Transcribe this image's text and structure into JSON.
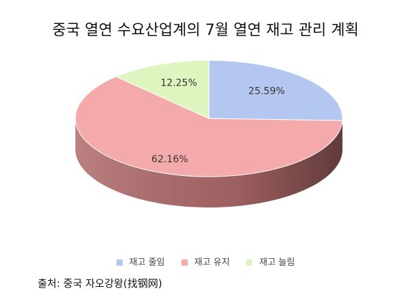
{
  "chart_data": {
    "type": "pie",
    "title": "중국 열연 수요산업계의 7월 열연 재고 관리 계획",
    "categories": [
      "재고 줄임",
      "재고 유지",
      "재고 늘림"
    ],
    "values": [
      25.59,
      62.16,
      12.25
    ],
    "labels": [
      "25.59%",
      "62.16%",
      "12.25%"
    ],
    "colors": [
      "#b4c7f0",
      "#f4aaaa",
      "#dff5c0"
    ],
    "side_colors": [
      "#8a9cc4",
      "#b06a6a",
      "#a8c08e"
    ],
    "style": "3d",
    "legend_position": "bottom"
  },
  "source": "출처: 중국 자오강왕(找钢网)"
}
